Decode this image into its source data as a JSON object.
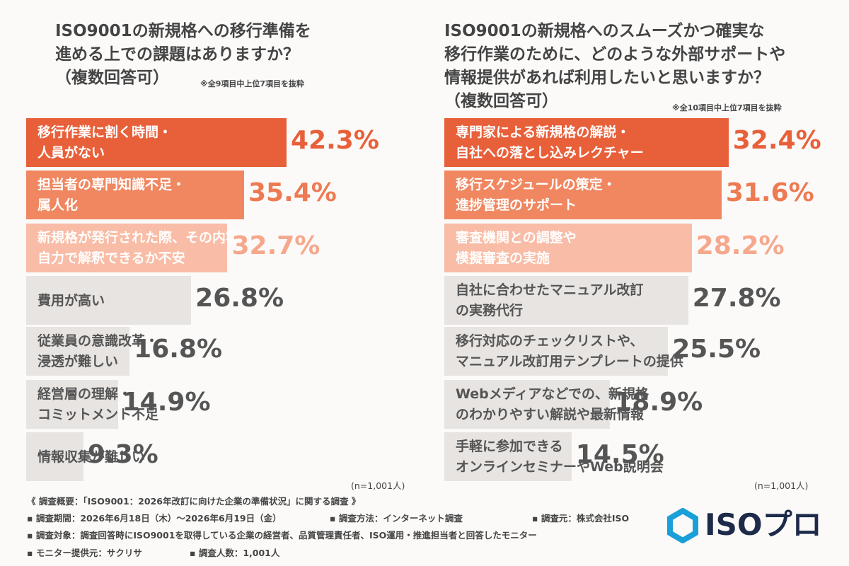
{
  "chart_data": [
    {
      "type": "bar",
      "orientation": "horizontal",
      "title": "ISO9001の新規格への移行準備を\n進める上での課題はありますか？\n（複数回答可）",
      "note": "※全9項目中上位7項目を抜粋",
      "categories": [
        "移行作業に割く時間・\n人員がない",
        "担当者の専門知識不足・\n属人化",
        "新規格が発行された際、その内容を\n自力で解釈できるか不安",
        "費用が高い",
        "従業員の意識改革・\n浸透が難しい",
        "経営層の理解・\nコミットメント不足",
        "情報収集が難しい"
      ],
      "values": [
        42.3,
        35.4,
        32.7,
        26.8,
        16.8,
        14.9,
        9.3
      ],
      "value_labels": [
        "42.3%",
        "35.4%",
        "32.7%",
        "26.8%",
        "16.8%",
        "14.9%",
        "9.3%"
      ],
      "colors": [
        "#e8603a",
        "#f08760",
        "#f9bca6",
        "#e7e4e2",
        "#e7e4e2",
        "#e7e4e2",
        "#e7e4e2"
      ],
      "label_colors": [
        "#e8603a",
        "#ee7a52",
        "#f6a88c",
        "#555555",
        "#555555",
        "#555555",
        "#555555"
      ],
      "sample": "(n=1,001人)"
    },
    {
      "type": "bar",
      "orientation": "horizontal",
      "title": "ISO9001の新規格へのスムーズかつ確実な\n移行作業のために、どのような外部サポートや\n情報提供があれば利用したいと思いますか？\n（複数回答可）",
      "note": "※全10項目中上位7項目を抜粋",
      "categories": [
        "専門家による新規格の解説・\n自社への落とし込みレクチャー",
        "移行スケジュールの策定・\n進捗管理のサポート",
        "審査機関との調整や\n模擬審査の実施",
        "自社に合わせたマニュアル改訂\nの実務代行",
        "移行対応のチェックリストや、\nマニュアル改訂用テンプレートの提供",
        "Webメディアなどでの、新規格\nのわかりやすい解説や最新情報",
        "手軽に参加できる\nオンラインセミナーやWeb説明会"
      ],
      "values": [
        32.4,
        31.6,
        28.2,
        27.8,
        25.5,
        18.9,
        14.5
      ],
      "value_labels": [
        "32.4%",
        "31.6%",
        "28.2%",
        "27.8%",
        "25.5%",
        "18.9%",
        "14.5%"
      ],
      "colors": [
        "#e8603a",
        "#f08760",
        "#f9bca6",
        "#e7e4e2",
        "#e7e4e2",
        "#e7e4e2",
        "#e7e4e2"
      ],
      "label_colors": [
        "#e8603a",
        "#ee7a52",
        "#f6a88c",
        "#555555",
        "#555555",
        "#555555",
        "#555555"
      ],
      "sample": "(n=1,001人)"
    }
  ],
  "footer": {
    "heading": "《 調査概要：「ISO9001：2026年改訂に向けた企業の準備状況」に関する調査 》",
    "items": [
      "▪ 調査期間：2026年6月18日（木）～2026年6月19日（金）",
      "▪ 調査方法：インターネット調査",
      "▪ 調査元：株式会社ISO",
      "▪ 調査対象：調査回答時にISO9001を取得している企業の経営者、品質管理責任者、ISO運用・推進担当者と回答したモニター",
      "▪ モニター提供元：サクリサ",
      "▪ 調査人数：1,001人"
    ]
  },
  "logo": "ISOプロ"
}
